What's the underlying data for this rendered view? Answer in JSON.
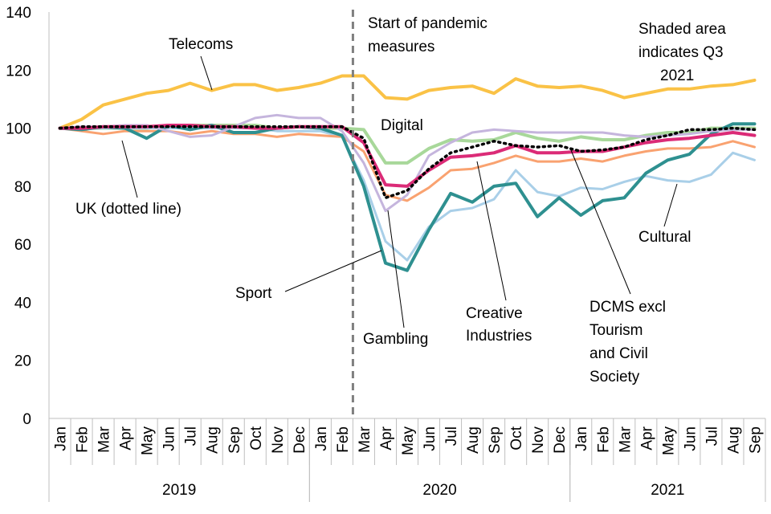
{
  "chart_data": {
    "type": "line",
    "ylim": [
      0,
      140
    ],
    "yticks": [
      0,
      20,
      40,
      60,
      80,
      100,
      120,
      140
    ],
    "grid": false,
    "categories": [
      "Jan",
      "Feb",
      "Mar",
      "Apr",
      "May",
      "Jun",
      "Jul",
      "Aug",
      "Sep",
      "Oct",
      "Nov",
      "Dec",
      "Jan",
      "Feb",
      "Mar",
      "Apr",
      "May",
      "Jun",
      "Jul",
      "Aug",
      "Sep",
      "Oct",
      "Nov",
      "Dec",
      "Jan",
      "Feb",
      "Mar",
      "Apr",
      "May",
      "Jun",
      "Jul",
      "Aug",
      "Sep"
    ],
    "year_groups": [
      {
        "label": "2019",
        "start": 0,
        "end": 11
      },
      {
        "label": "2020",
        "start": 12,
        "end": 23
      },
      {
        "label": "2021",
        "start": 24,
        "end": 32
      }
    ],
    "pandemic_marker_index": 14,
    "series": [
      {
        "name": "Telecoms",
        "color": "#FAC246",
        "width": 4,
        "dash": "",
        "values": [
          100,
          103,
          108,
          110,
          112,
          113,
          115.5,
          113,
          115,
          115,
          113,
          114,
          115.5,
          118,
          118,
          110.5,
          110,
          113,
          114,
          114.5,
          112,
          117,
          114.5,
          114,
          114.5,
          113,
          110.5,
          112,
          113.5,
          113.5,
          114.5,
          115,
          116.5
        ]
      },
      {
        "name": "Digital",
        "color": "#A8D89A",
        "width": 4,
        "dash": "",
        "values": [
          100,
          100,
          100,
          100,
          100,
          101,
          101,
          101,
          101,
          101,
          100,
          100.5,
          100,
          100,
          99.5,
          88,
          88,
          93,
          96,
          95.5,
          96,
          98.5,
          96.5,
          95.5,
          97,
          96,
          96,
          97.5,
          98.5,
          98.5,
          100,
          100,
          100
        ]
      },
      {
        "name": "Cultural",
        "color": "#A9CFE8",
        "width": 3,
        "dash": "",
        "values": [
          100,
          100,
          100,
          100,
          100,
          100,
          100,
          100,
          100,
          100,
          99,
          99,
          99,
          97,
          82,
          61,
          54.5,
          66,
          71.5,
          72.5,
          75.5,
          85.5,
          78,
          76.5,
          79.5,
          79,
          81.5,
          83.5,
          82,
          81.5,
          84,
          91.5,
          89
        ]
      },
      {
        "name": "Creative Industries",
        "color": "#F9A270",
        "width": 3,
        "dash": "",
        "values": [
          100,
          99,
          98,
          99,
          99,
          99,
          98,
          99,
          98,
          98,
          97,
          98,
          97.5,
          97,
          92,
          77,
          75,
          79.5,
          85.5,
          86,
          88,
          90.5,
          88.5,
          88.5,
          89.5,
          88.5,
          90.5,
          92,
          93,
          93,
          93.5,
          95.5,
          93.5
        ]
      },
      {
        "name": "Sport",
        "color": "#2E9090",
        "width": 4,
        "dash": "",
        "values": [
          100,
          99.5,
          100.5,
          100,
          96.5,
          101,
          99.5,
          101,
          98.5,
          98.5,
          100,
          100.5,
          100,
          97.5,
          80,
          53.5,
          51,
          65,
          77.5,
          74.5,
          80,
          81,
          69.5,
          76,
          70,
          75,
          76,
          84.5,
          89,
          91,
          98,
          101.5,
          101.5
        ]
      },
      {
        "name": "",
        "color": "#C5B5DD",
        "width": 3,
        "dash": "",
        "values": [
          100,
          100.5,
          100.5,
          101,
          101,
          99,
          97,
          97.5,
          100.5,
          103.5,
          104.5,
          103.5,
          103.5,
          99,
          88,
          71.5,
          77,
          90.5,
          95,
          98.5,
          99.5,
          99,
          98.5,
          98.5,
          98.5,
          98.5,
          97.5,
          97,
          97.5,
          98,
          99,
          99.5,
          99.5
        ]
      },
      {
        "name": "DCMS excl Tourism and Civil Society",
        "color": "#DB2B77",
        "width": 4,
        "dash": "",
        "values": [
          100,
          100,
          100.5,
          100.5,
          100.5,
          101,
          101,
          100.5,
          100.5,
          100,
          100,
          100.5,
          100.5,
          100.5,
          95,
          80.5,
          80,
          85.5,
          90,
          90.5,
          91.5,
          94,
          91.5,
          91.5,
          92,
          92,
          93.5,
          95,
          96,
          96.5,
          97.5,
          98.5,
          97.5
        ]
      },
      {
        "name": "UK (dotted line)",
        "color": "#000000",
        "width": 3.5,
        "dash": "2 5",
        "values": [
          100,
          100.5,
          100.5,
          100.5,
          100.5,
          100.5,
          100.5,
          100.5,
          100.5,
          100.5,
          100.5,
          100.5,
          100.5,
          100.5,
          96.5,
          76,
          78.5,
          86,
          91.5,
          93.5,
          95.5,
          94,
          93.5,
          94,
          92,
          92.5,
          93.5,
          96,
          97.5,
          99.5,
          99.5,
          100,
          99.5
        ]
      }
    ],
    "annotations": {
      "pandemic_line1": "Start of pandemic",
      "pandemic_line2": "measures",
      "shaded_line1": "Shaded area",
      "shaded_line2": "indicates Q3",
      "shaded_line3": "2021",
      "telecoms": "Telecoms",
      "digital": "Digital",
      "uk": "UK (dotted line)",
      "sport": "Sport",
      "gambling": "Gambling",
      "creative_line1": "Creative",
      "creative_line2": "Industries",
      "dcms_line1": "DCMS excl",
      "dcms_line2": "Tourism",
      "dcms_line3": "and Civil",
      "dcms_line4": "Society",
      "cultural": "Cultural"
    }
  }
}
